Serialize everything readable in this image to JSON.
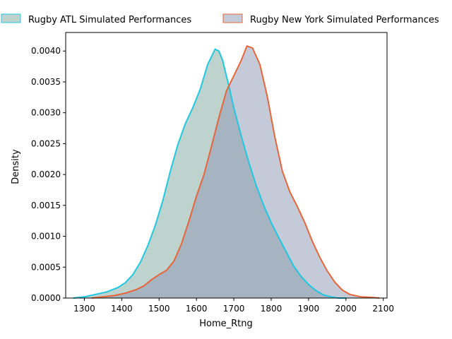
{
  "chart_data": {
    "type": "area",
    "title": "",
    "xlabel": "Home_Rtng",
    "ylabel": "Density",
    "xlim": [
      1250,
      2110
    ],
    "ylim": [
      0,
      0.0043
    ],
    "xticks": [
      1300,
      1400,
      1500,
      1600,
      1700,
      1800,
      1900,
      2000,
      2100
    ],
    "yticks": [
      0.0,
      0.0005,
      0.001,
      0.0015,
      0.002,
      0.0025,
      0.003,
      0.0035,
      0.004
    ],
    "ytick_labels": [
      "0.0000",
      "0.0005",
      "0.0010",
      "0.0015",
      "0.0020",
      "0.0025",
      "0.0030",
      "0.0035",
      "0.0040"
    ],
    "grid": false,
    "legend_placement": "top (above plot, two columns)",
    "series": [
      {
        "name": "Rugby ATL Simulated Performances",
        "line_color": "#1ec8e0",
        "fill_color": "#7fa89e",
        "x": [
          1270,
          1300,
          1330,
          1360,
          1390,
          1410,
          1430,
          1450,
          1470,
          1490,
          1510,
          1530,
          1550,
          1570,
          1590,
          1610,
          1630,
          1650,
          1660,
          1670,
          1680,
          1690,
          1700,
          1720,
          1740,
          1760,
          1780,
          1800,
          1820,
          1840,
          1860,
          1880,
          1900,
          1920,
          1940,
          1960,
          1980,
          2000
        ],
        "y": [
          0.0,
          2e-05,
          6e-05,
          0.0001,
          0.00017,
          0.00025,
          0.00038,
          0.00058,
          0.00085,
          0.00118,
          0.00158,
          0.00205,
          0.00248,
          0.00282,
          0.00308,
          0.00338,
          0.00378,
          0.00403,
          0.004,
          0.00385,
          0.0036,
          0.00335,
          0.00308,
          0.00262,
          0.0022,
          0.00182,
          0.0015,
          0.00122,
          0.00098,
          0.00075,
          0.00052,
          0.00035,
          0.00022,
          0.00012,
          5e-05,
          2e-05,
          0.0,
          0.0
        ]
      },
      {
        "name": "Rugby New York Simulated Performances",
        "line_color": "#e8653a",
        "fill_color": "#8c96b2",
        "x": [
          1320,
          1350,
          1380,
          1410,
          1440,
          1460,
          1480,
          1500,
          1520,
          1540,
          1560,
          1580,
          1600,
          1620,
          1640,
          1660,
          1680,
          1700,
          1720,
          1735,
          1750,
          1770,
          1790,
          1810,
          1830,
          1850,
          1870,
          1890,
          1910,
          1930,
          1950,
          1970,
          1990,
          2010,
          2040,
          2070,
          2090
        ],
        "y": [
          0.0,
          2e-05,
          4e-05,
          8e-05,
          0.00014,
          0.0002,
          0.0003,
          0.00038,
          0.00045,
          0.0006,
          0.00088,
          0.00125,
          0.00165,
          0.002,
          0.00245,
          0.00292,
          0.00335,
          0.0036,
          0.00385,
          0.00408,
          0.00405,
          0.00378,
          0.00325,
          0.0026,
          0.00205,
          0.00172,
          0.00148,
          0.00122,
          0.00092,
          0.00066,
          0.00044,
          0.00026,
          0.00013,
          6e-05,
          2e-05,
          1e-05,
          0.0
        ]
      }
    ]
  }
}
